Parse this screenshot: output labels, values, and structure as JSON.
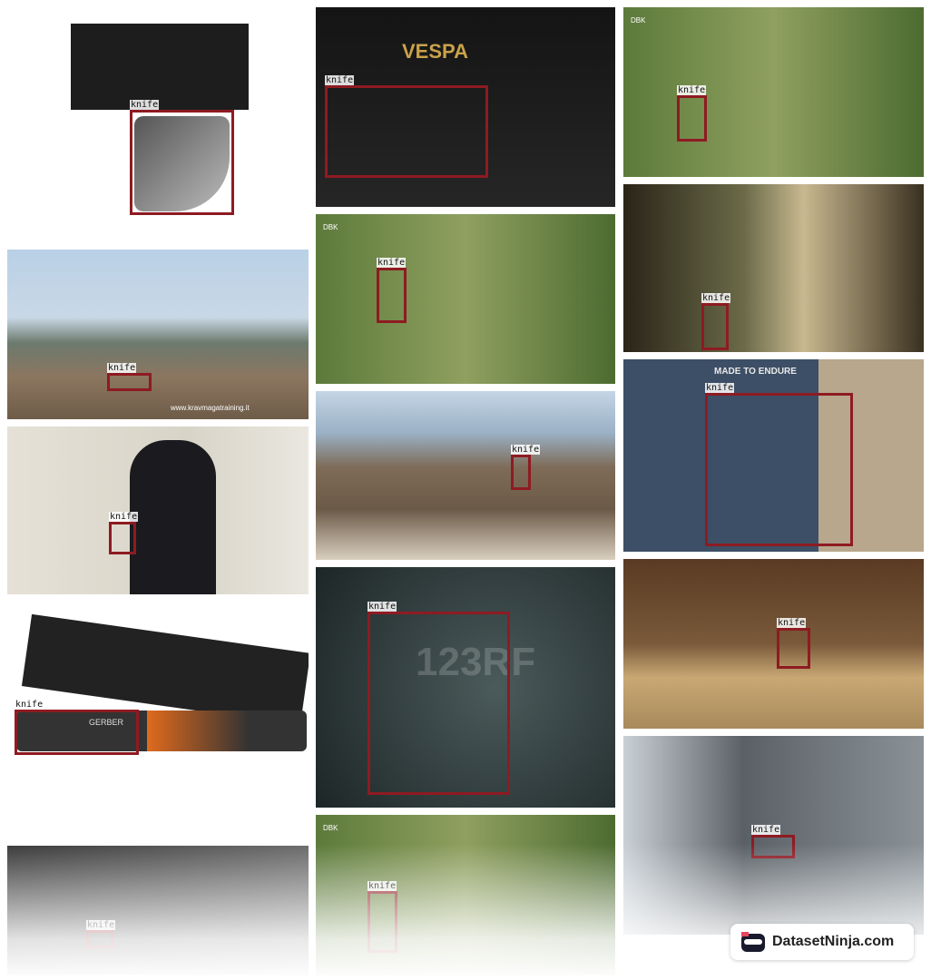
{
  "annotations": [
    "knife",
    "knife",
    "knife",
    "knife",
    "knife",
    "knife",
    "knife",
    "knife",
    "knife",
    "knife",
    "knife",
    "knife",
    "knife",
    "knife",
    "knife"
  ],
  "image_texts": {
    "brand": "VESPA",
    "channel": "DBK",
    "website": "www.kravmagatraining.it",
    "shirt": "MADE TO ENDURE",
    "watermark": "123RF",
    "product": "GERBER"
  },
  "logo": "DatasetNinja.com"
}
